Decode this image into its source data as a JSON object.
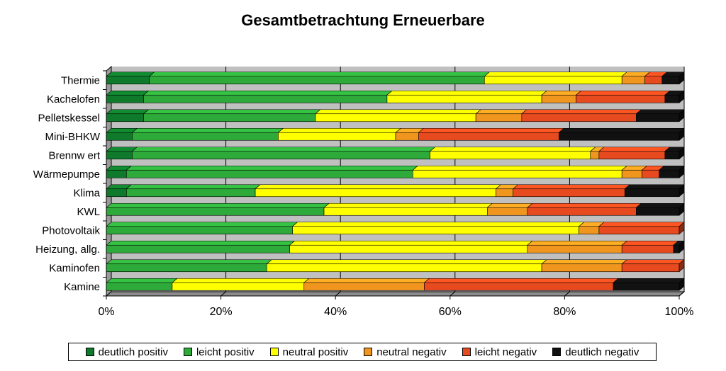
{
  "chart_data": {
    "type": "bar",
    "orientation": "horizontal",
    "stacked": "percent",
    "title": "Gesamtbetrachtung Erneuerbare",
    "categories": [
      "Thermie",
      "Kachelofen",
      "Pelletskessel",
      "Mini-BHKW",
      "Brennw ert",
      "Wärmepumpe",
      "Klima",
      "KWL",
      "Photovoltaik",
      "Heizung, allg.",
      "Kaminofen",
      "Kamine"
    ],
    "series": [
      {
        "name": "deutlich positiv",
        "color": "#0f7a2b",
        "values": [
          7.5,
          6.5,
          6.5,
          4.5,
          4.5,
          3.5,
          3.5,
          0,
          0,
          0,
          0,
          0
        ]
      },
      {
        "name": "leicht positiv",
        "color": "#2eaa3a",
        "values": [
          58.5,
          42.5,
          30,
          25.5,
          52,
          50,
          22.5,
          38,
          32.5,
          32,
          28,
          11.5
        ]
      },
      {
        "name": "neutral positiv",
        "color": "#ffff00",
        "values": [
          24,
          27,
          28,
          20.5,
          28,
          36.5,
          42,
          28.5,
          50,
          41.5,
          48,
          23
        ]
      },
      {
        "name": "neutral negativ",
        "color": "#f0961e",
        "values": [
          4,
          6,
          8,
          4,
          1.5,
          3.5,
          3,
          7,
          3.5,
          16.5,
          14,
          21
        ]
      },
      {
        "name": "leicht negativ",
        "color": "#e64a1e",
        "values": [
          3,
          15.5,
          20,
          24.5,
          11.5,
          3,
          19.5,
          19,
          14,
          9,
          10,
          33
        ]
      },
      {
        "name": "deutlich negativ",
        "color": "#111111",
        "values": [
          3,
          2.5,
          7.5,
          21,
          2.5,
          3.5,
          9.5,
          7.5,
          0,
          1,
          0,
          11.5
        ]
      }
    ],
    "xlim": [
      0,
      100
    ],
    "x_ticks": [
      "0%",
      "20%",
      "40%",
      "60%",
      "80%",
      "100%"
    ],
    "grid": true,
    "legend_position": "bottom",
    "plot_background": "#c0c0c0"
  }
}
